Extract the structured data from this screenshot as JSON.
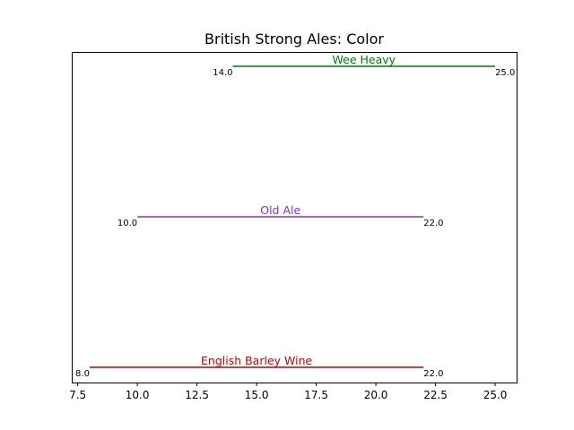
{
  "chart_data": {
    "type": "range",
    "title": "British Strong Ales: Color",
    "xlabel": "",
    "ylabel": "",
    "xlim": [
      7.25,
      25.9
    ],
    "xticks": [
      7.5,
      10.0,
      12.5,
      15.0,
      17.5,
      20.0,
      22.5,
      25.0
    ],
    "xtick_labels": [
      "7.5",
      "10.0",
      "12.5",
      "15.0",
      "17.5",
      "20.0",
      "22.5",
      "25.0"
    ],
    "grid": false,
    "series": [
      {
        "name": "English Barley Wine",
        "min": 8.0,
        "max": 22.0,
        "min_label": "8.0",
        "max_label": "22.0",
        "color": "#cc0000"
      },
      {
        "name": "Old Ale",
        "min": 10.0,
        "max": 22.0,
        "min_label": "10.0",
        "max_label": "22.0",
        "color": "#8a2be2"
      },
      {
        "name": "Wee Heavy",
        "min": 14.0,
        "max": 25.0,
        "min_label": "14.0",
        "max_label": "25.0",
        "color": "#008000"
      }
    ]
  }
}
